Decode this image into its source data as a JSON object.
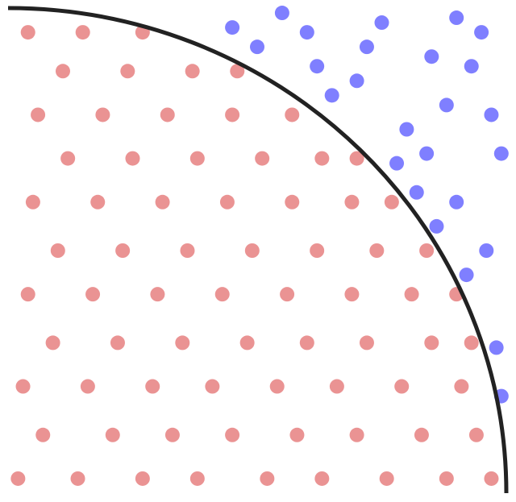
{
  "chart_data": {
    "type": "scatter",
    "xlim": [
      0,
      1
    ],
    "ylim": [
      0,
      1
    ],
    "circle_color": "#222222",
    "series": [
      {
        "color": "#d62728",
        "x": [
          0.02,
          0.14,
          0.27,
          0.38,
          0.52,
          0.63,
          0.76,
          0.88,
          0.97,
          0.07,
          0.21,
          0.33,
          0.45,
          0.58,
          0.7,
          0.83,
          0.94,
          0.03,
          0.16,
          0.29,
          0.41,
          0.54,
          0.66,
          0.79,
          0.91,
          0.09,
          0.22,
          0.35,
          0.48,
          0.6,
          0.72,
          0.85,
          0.93,
          0.04,
          0.17,
          0.3,
          0.43,
          0.56,
          0.69,
          0.81,
          0.9,
          0.1,
          0.23,
          0.36,
          0.49,
          0.62,
          0.74,
          0.84,
          0.05,
          0.18,
          0.31,
          0.44,
          0.57,
          0.69,
          0.77,
          0.12,
          0.25,
          0.38,
          0.51,
          0.63,
          0.7,
          0.06,
          0.19,
          0.32,
          0.45,
          0.57,
          0.11,
          0.24,
          0.37,
          0.46,
          0.04,
          0.15,
          0.27
        ],
        "y": [
          0.03,
          0.03,
          0.03,
          0.03,
          0.03,
          0.03,
          0.03,
          0.03,
          0.03,
          0.12,
          0.12,
          0.12,
          0.12,
          0.12,
          0.12,
          0.12,
          0.12,
          0.22,
          0.22,
          0.22,
          0.22,
          0.22,
          0.22,
          0.22,
          0.22,
          0.31,
          0.31,
          0.31,
          0.31,
          0.31,
          0.31,
          0.31,
          0.31,
          0.41,
          0.41,
          0.41,
          0.41,
          0.41,
          0.41,
          0.41,
          0.41,
          0.5,
          0.5,
          0.5,
          0.5,
          0.5,
          0.5,
          0.5,
          0.6,
          0.6,
          0.6,
          0.6,
          0.6,
          0.6,
          0.6,
          0.69,
          0.69,
          0.69,
          0.69,
          0.69,
          0.69,
          0.78,
          0.78,
          0.78,
          0.78,
          0.78,
          0.87,
          0.87,
          0.87,
          0.87,
          0.95,
          0.95,
          0.95
        ]
      },
      {
        "color": "#0000ff",
        "x": [
          0.95,
          0.85,
          0.7,
          0.9,
          0.98,
          0.6,
          0.8,
          0.92,
          0.75,
          0.99,
          0.5,
          0.88,
          0.65,
          0.96,
          0.82,
          0.72,
          0.93,
          0.55,
          0.86,
          0.99,
          0.78,
          0.97,
          0.62,
          0.9,
          0.45,
          0.84
        ],
        "y": [
          0.95,
          0.9,
          0.85,
          0.6,
          0.3,
          0.95,
          0.75,
          0.45,
          0.97,
          0.7,
          0.92,
          0.8,
          0.82,
          0.5,
          0.62,
          0.92,
          0.88,
          0.99,
          0.55,
          0.2,
          0.68,
          0.78,
          0.88,
          0.98,
          0.96,
          0.7
        ]
      }
    ]
  }
}
